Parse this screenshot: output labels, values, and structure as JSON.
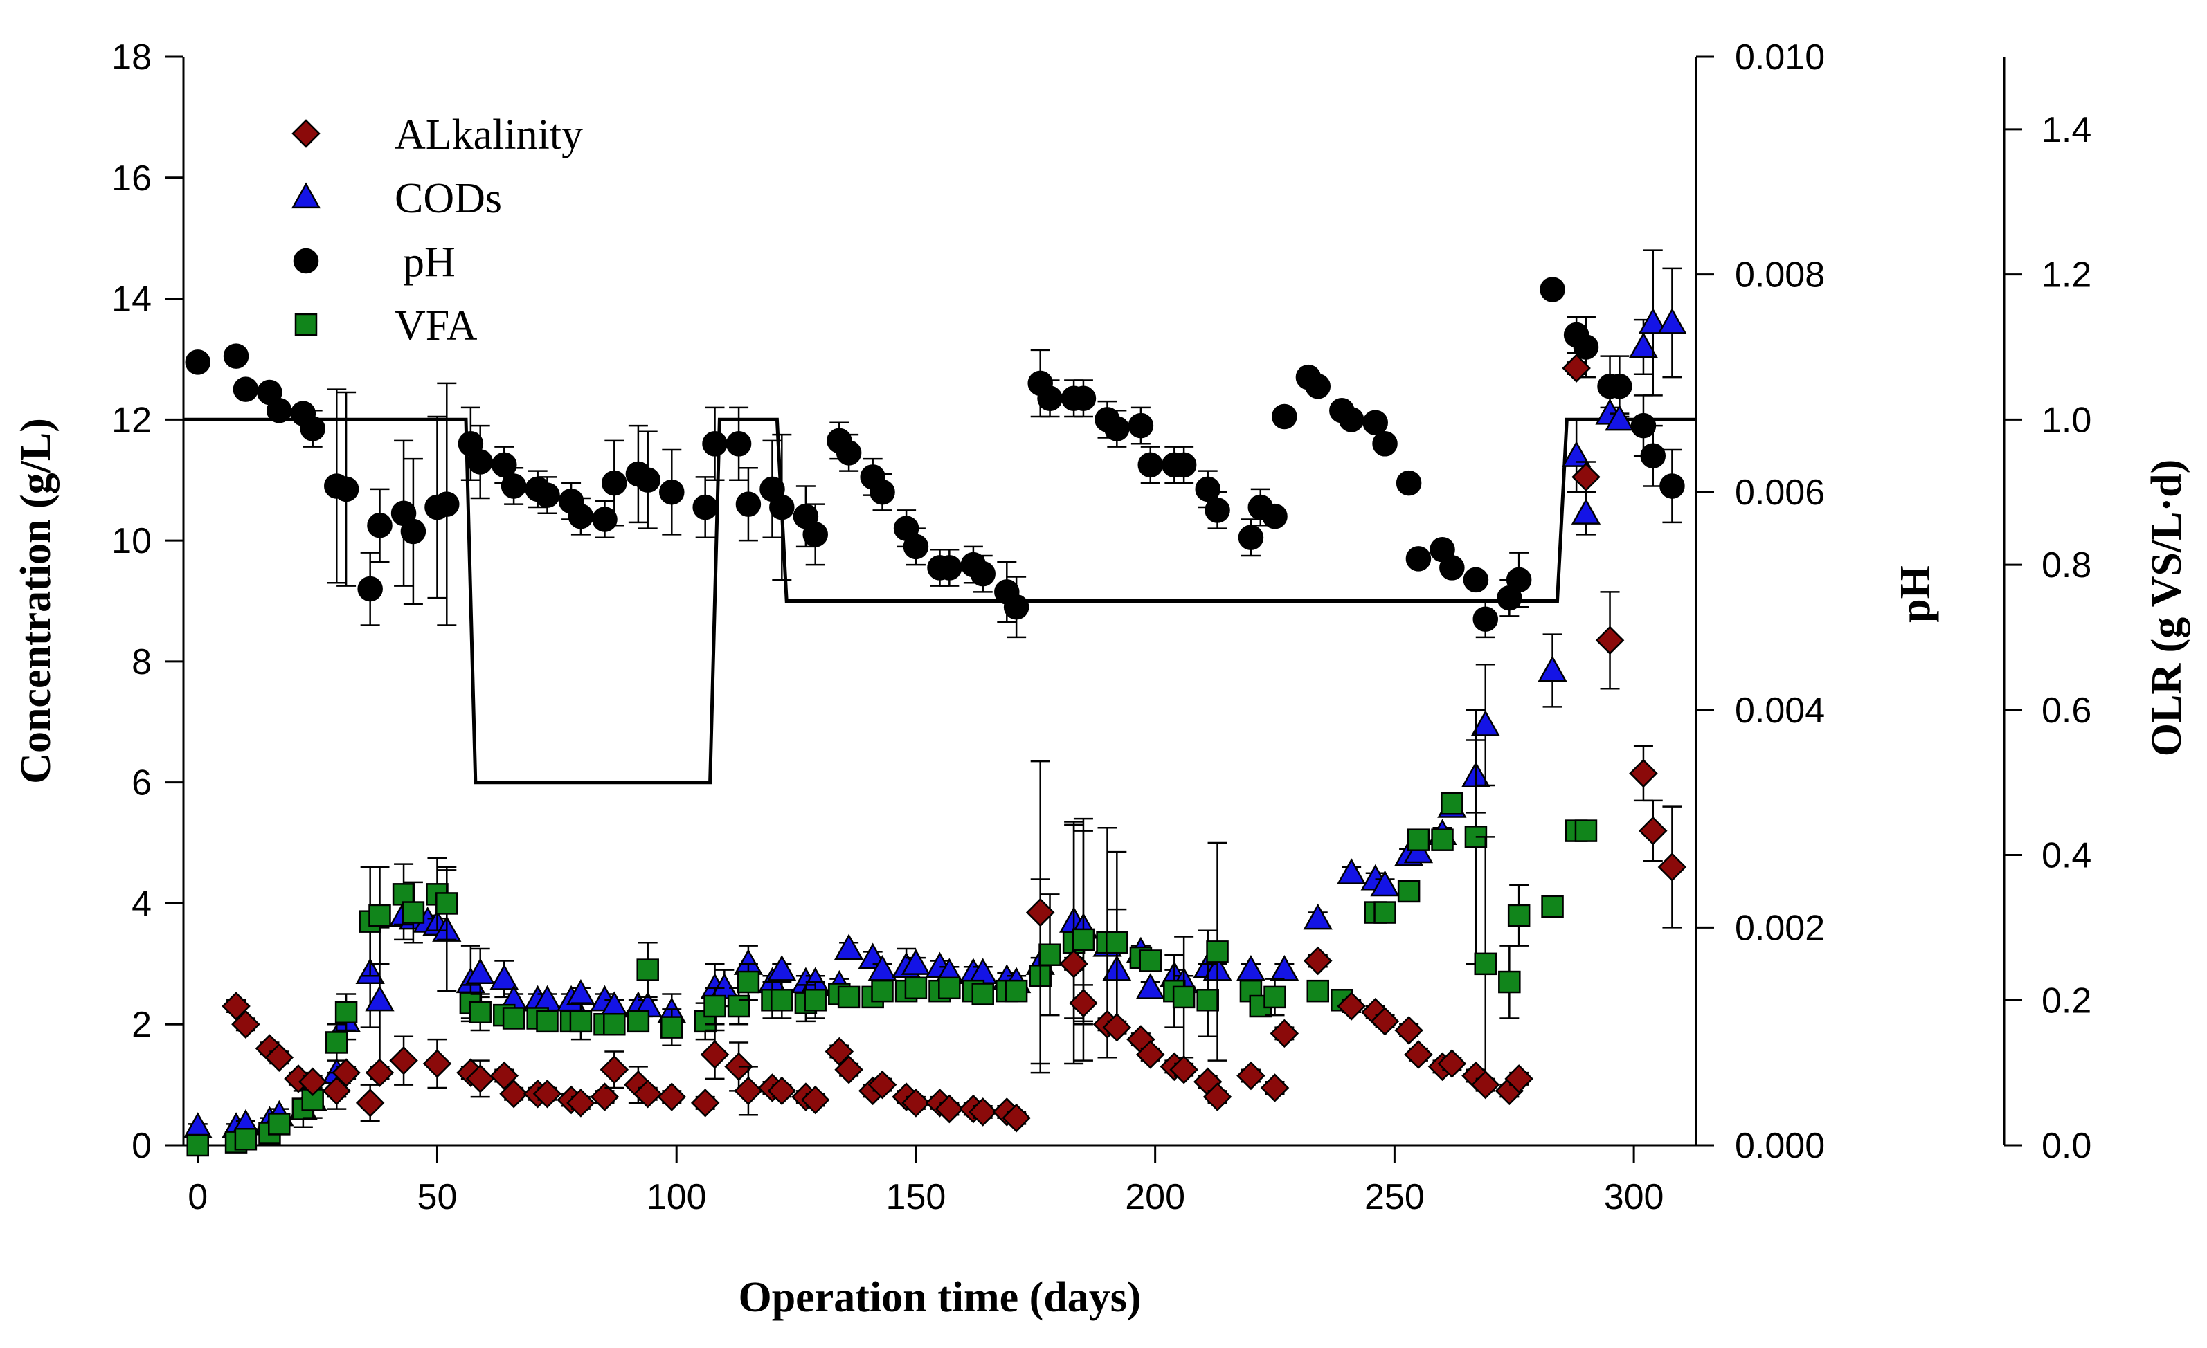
{
  "chart_data": {
    "type": "scatter",
    "title": "",
    "xlabel": "Operation time (days)",
    "ylabel": "Concentration (g/L)",
    "ylabel_right_1": "pH",
    "ylabel_right_2": "OLR (g VS/L·d)",
    "xlim": [
      -3,
      313
    ],
    "ylim": [
      0,
      18
    ],
    "ylim_right_1": [
      0.0,
      0.01
    ],
    "ylim_right_2": [
      0.0,
      1.5
    ],
    "xticks": [
      "0",
      "50",
      "100",
      "150",
      "200",
      "250",
      "300"
    ],
    "yticks": [
      "0",
      "2",
      "4",
      "6",
      "8",
      "10",
      "12",
      "14",
      "16",
      "18"
    ],
    "yticks_right_1": [
      "0.000",
      "0.002",
      "0.004",
      "0.006",
      "0.008",
      "0.010"
    ],
    "yticks_right_2": [
      "0.0",
      "0.2",
      "0.4",
      "0.6",
      "0.8",
      "1.0",
      "1.2",
      "1.4"
    ],
    "xtick_values": [
      0,
      50,
      100,
      150,
      200,
      250,
      300
    ],
    "ytick_values": [
      0,
      2,
      4,
      6,
      8,
      10,
      12,
      14,
      16,
      18
    ],
    "ytick_right_1_values": [
      0,
      0.002,
      0.004,
      0.006,
      0.008,
      0.01
    ],
    "ytick_right_2_values": [
      0,
      0.2,
      0.4,
      0.6,
      0.8,
      1.0,
      1.2,
      1.4
    ],
    "legend_position": "top-left",
    "colors": {
      "alkalinity": "#8b0a0a",
      "cods": "#1414e6",
      "ph": "#000000",
      "vfa": "#11851b",
      "olr": "#000000"
    },
    "series": [
      {
        "name": "ALkalinity",
        "marker": "diamond",
        "axis": "left",
        "x": [
          8,
          10,
          15,
          17,
          21,
          24,
          29,
          31,
          36,
          38,
          43,
          50,
          57,
          59,
          64,
          66,
          71,
          73,
          78,
          80,
          85,
          87,
          92,
          94,
          99,
          106,
          108,
          113,
          115,
          120,
          122,
          127,
          129,
          134,
          136,
          141,
          143,
          148,
          150,
          155,
          157,
          162,
          164,
          169,
          171,
          176,
          183,
          185,
          190,
          192,
          197,
          199,
          204,
          206,
          211,
          213,
          220,
          225,
          227,
          234,
          241,
          246,
          248,
          253,
          255,
          260,
          262,
          267,
          269,
          274,
          276,
          288,
          290,
          295,
          302,
          304,
          308
        ],
        "y": [
          2.3,
          2.0,
          1.6,
          1.45,
          1.1,
          1.05,
          0.9,
          1.2,
          0.7,
          1.2,
          1.4,
          1.35,
          1.2,
          1.1,
          1.15,
          0.85,
          0.85,
          0.85,
          0.75,
          0.7,
          0.8,
          1.25,
          1.0,
          0.85,
          0.8,
          0.7,
          1.5,
          1.3,
          0.9,
          0.95,
          0.9,
          0.8,
          0.75,
          1.55,
          1.25,
          0.9,
          1.0,
          0.8,
          0.7,
          0.7,
          0.6,
          0.6,
          0.55,
          0.55,
          0.45,
          3.85,
          3.0,
          2.35,
          2.0,
          1.95,
          1.75,
          1.5,
          1.3,
          1.25,
          1.05,
          0.8,
          1.15,
          0.95,
          1.85,
          3.05,
          2.3,
          2.2,
          2.05,
          1.9,
          1.5,
          1.3,
          1.35,
          1.15,
          1.0,
          0.9,
          1.1,
          12.85,
          11.05,
          8.35,
          6.15,
          5.2,
          4.6
        ],
        "yerr": [
          0.1,
          0.1,
          0.1,
          0.1,
          0.1,
          0.1,
          0.3,
          0.1,
          0.3,
          0.1,
          0.4,
          0.4,
          0.1,
          0.3,
          0.1,
          0.1,
          0.1,
          0.1,
          0.1,
          0.1,
          0.1,
          0.3,
          0.3,
          0.1,
          0.1,
          0.1,
          0.4,
          0.4,
          0.4,
          0.1,
          0.1,
          0.1,
          0.1,
          0.1,
          0.1,
          0.1,
          0.1,
          0.1,
          0.1,
          0.1,
          0.1,
          0.1,
          0.1,
          0.1,
          0.1,
          2.5,
          0.1,
          0.3,
          0.1,
          0.1,
          0.1,
          0.1,
          0.1,
          0.1,
          0.1,
          0.1,
          0.1,
          0.1,
          0.1,
          0.1,
          0.1,
          0.1,
          0.1,
          0.1,
          0.1,
          0.1,
          0.1,
          0.1,
          0.1,
          0.1,
          0.1,
          0.1,
          0.25,
          0.8,
          0.45,
          0.5,
          1.0
        ]
      },
      {
        "name": "CODs",
        "marker": "triangle",
        "axis": "left",
        "x": [
          0,
          8,
          10,
          15,
          17,
          22,
          24,
          29,
          31,
          36,
          38,
          43,
          45,
          48,
          50,
          52,
          57,
          59,
          64,
          66,
          71,
          73,
          78,
          80,
          85,
          87,
          92,
          94,
          99,
          108,
          110,
          115,
          120,
          122,
          127,
          129,
          134,
          136,
          141,
          143,
          148,
          150,
          155,
          157,
          162,
          164,
          169,
          171,
          176,
          183,
          185,
          190,
          192,
          197,
          199,
          204,
          206,
          211,
          213,
          220,
          227,
          234,
          241,
          246,
          248,
          253,
          255,
          260,
          262,
          267,
          269,
          283,
          288,
          290,
          295,
          297,
          302,
          304,
          308
        ],
        "y": [
          0.3,
          0.3,
          0.35,
          0.4,
          0.5,
          0.6,
          0.75,
          1.2,
          2.05,
          2.85,
          2.4,
          3.8,
          3.75,
          3.7,
          3.65,
          3.55,
          2.7,
          2.85,
          2.75,
          2.4,
          2.4,
          2.4,
          2.4,
          2.5,
          2.4,
          2.3,
          2.3,
          2.3,
          2.2,
          2.6,
          2.6,
          3.0,
          2.7,
          2.9,
          2.7,
          2.7,
          2.65,
          3.25,
          3.1,
          2.9,
          2.95,
          3.0,
          2.95,
          2.85,
          2.85,
          2.85,
          2.75,
          2.7,
          3.0,
          3.7,
          3.6,
          3.3,
          2.9,
          3.2,
          2.6,
          2.8,
          2.7,
          2.95,
          2.9,
          2.9,
          2.9,
          3.75,
          4.5,
          4.4,
          4.3,
          4.8,
          4.85,
          5.15,
          5.6,
          6.1,
          6.95,
          7.85,
          11.4,
          10.45,
          12.1,
          12.0,
          13.2,
          13.6,
          13.6
        ],
        "yerr": [
          0.05,
          0.05,
          0.05,
          0.05,
          0.1,
          0.3,
          0.1,
          0.4,
          0.3,
          0.9,
          1.2,
          0.4,
          0.1,
          0.1,
          0.1,
          1.0,
          0.6,
          0.4,
          0.3,
          0.1,
          0.1,
          0.1,
          0.1,
          0.1,
          0.1,
          0.1,
          0.1,
          0.1,
          0.3,
          0.4,
          0.3,
          0.3,
          0.1,
          0.1,
          0.1,
          0.1,
          0.1,
          0.1,
          0.1,
          0.1,
          0.3,
          0.1,
          0.1,
          0.1,
          0.1,
          0.1,
          0.1,
          0.1,
          0.1,
          1.6,
          1.6,
          0.1,
          1.0,
          0.1,
          0.1,
          0.1,
          0.1,
          0.6,
          0.1,
          0.1,
          0.1,
          0.1,
          0.1,
          0.1,
          0.1,
          0.1,
          0.1,
          0.1,
          0.1,
          0.6,
          1.0,
          0.6,
          0.6,
          0.35,
          0.1,
          0.1,
          0.45,
          1.2,
          0.9
        ]
      },
      {
        "name": "pH",
        "marker": "circle",
        "axis": "left",
        "x": [
          0,
          8,
          10,
          15,
          17,
          22,
          24,
          29,
          31,
          36,
          38,
          43,
          45,
          50,
          52,
          57,
          59,
          64,
          66,
          71,
          73,
          78,
          80,
          85,
          87,
          92,
          94,
          99,
          106,
          108,
          113,
          115,
          120,
          122,
          127,
          129,
          134,
          136,
          141,
          143,
          148,
          150,
          155,
          157,
          162,
          164,
          169,
          171,
          176,
          178,
          183,
          185,
          190,
          192,
          197,
          199,
          204,
          206,
          211,
          213,
          220,
          222,
          225,
          227,
          232,
          234,
          239,
          241,
          246,
          248,
          253,
          255,
          260,
          262,
          267,
          269,
          274,
          276,
          283,
          288,
          290,
          295,
          297,
          302,
          304,
          308
        ],
        "y": [
          12.95,
          13.05,
          12.5,
          12.45,
          12.15,
          12.1,
          11.85,
          10.9,
          10.85,
          9.2,
          10.25,
          10.45,
          10.15,
          10.55,
          10.6,
          11.6,
          11.3,
          11.25,
          10.9,
          10.85,
          10.75,
          10.65,
          10.4,
          10.35,
          10.95,
          11.1,
          11.0,
          10.8,
          10.55,
          11.6,
          11.6,
          10.6,
          10.85,
          10.55,
          10.4,
          10.1,
          11.65,
          11.45,
          11.05,
          10.8,
          10.2,
          9.9,
          9.55,
          9.55,
          9.6,
          9.45,
          9.15,
          8.9,
          12.6,
          12.35,
          12.35,
          12.35,
          12.0,
          11.85,
          11.9,
          11.25,
          11.25,
          11.25,
          10.85,
          10.5,
          10.05,
          10.55,
          10.4,
          12.05,
          12.7,
          12.55,
          12.15,
          12.0,
          11.95,
          11.6,
          10.95,
          9.7,
          9.85,
          9.55,
          9.35,
          8.7,
          9.05,
          9.35,
          14.15,
          13.4,
          13.2,
          12.55,
          12.55,
          11.9,
          11.4,
          10.9
        ],
        "yerr": [
          0.1,
          0.1,
          0.1,
          0.1,
          0.1,
          0.1,
          0.3,
          1.6,
          1.6,
          0.6,
          0.6,
          1.2,
          1.2,
          1.5,
          2.0,
          0.6,
          0.6,
          0.3,
          0.3,
          0.3,
          0.3,
          0.3,
          0.3,
          0.3,
          0.7,
          0.8,
          0.8,
          0.7,
          0.5,
          0.6,
          0.6,
          0.6,
          0.8,
          1.2,
          0.5,
          0.5,
          0.3,
          0.3,
          0.3,
          0.3,
          0.3,
          0.3,
          0.3,
          0.3,
          0.3,
          0.3,
          0.5,
          0.5,
          0.55,
          0.3,
          0.3,
          0.3,
          0.3,
          0.3,
          0.3,
          0.3,
          0.3,
          0.3,
          0.3,
          0.3,
          0.3,
          0.3,
          0.1,
          0.1,
          0.1,
          0.1,
          0.1,
          0.1,
          0.1,
          0.1,
          0.1,
          0.1,
          0.1,
          0.1,
          0.1,
          0.3,
          0.3,
          0.45,
          0.1,
          0.3,
          0.5,
          0.5,
          0.5,
          0.5,
          0.5,
          0.6
        ]
      },
      {
        "name": "VFA",
        "marker": "square",
        "axis": "left",
        "x": [
          0,
          8,
          10,
          15,
          17,
          22,
          24,
          29,
          31,
          36,
          38,
          43,
          45,
          50,
          52,
          57,
          59,
          64,
          66,
          71,
          73,
          78,
          80,
          85,
          87,
          92,
          94,
          99,
          106,
          108,
          113,
          115,
          120,
          122,
          127,
          129,
          134,
          136,
          141,
          143,
          148,
          150,
          155,
          157,
          162,
          164,
          169,
          171,
          176,
          178,
          183,
          185,
          190,
          192,
          197,
          199,
          204,
          206,
          211,
          213,
          220,
          222,
          225,
          234,
          239,
          246,
          248,
          253,
          255,
          260,
          262,
          267,
          269,
          274,
          276,
          283,
          288,
          290
        ],
        "y": [
          0.0,
          0.05,
          0.1,
          0.2,
          0.35,
          0.6,
          0.75,
          1.7,
          2.2,
          3.7,
          3.8,
          4.15,
          3.85,
          4.15,
          4.0,
          2.35,
          2.2,
          2.15,
          2.1,
          2.1,
          2.05,
          2.05,
          2.05,
          2.0,
          2.0,
          2.05,
          2.9,
          1.95,
          2.05,
          2.3,
          2.3,
          2.7,
          2.4,
          2.4,
          2.35,
          2.4,
          2.5,
          2.45,
          2.45,
          2.55,
          2.55,
          2.6,
          2.55,
          2.6,
          2.55,
          2.5,
          2.55,
          2.55,
          2.8,
          3.15,
          3.35,
          3.4,
          3.35,
          3.35,
          3.1,
          3.05,
          2.55,
          2.45,
          2.4,
          3.2,
          2.55,
          2.3,
          2.45,
          2.55,
          2.4,
          3.85,
          3.85,
          4.2,
          5.05,
          5.05,
          5.65,
          5.1,
          3.0,
          2.7,
          3.8,
          3.95,
          5.2,
          5.2
        ],
        "yerr": [
          0.05,
          0.05,
          0.05,
          0.1,
          0.1,
          0.1,
          0.3,
          0.3,
          0.3,
          0.9,
          0.8,
          0.5,
          0.5,
          0.6,
          0.6,
          0.3,
          0.3,
          0.1,
          0.1,
          0.1,
          0.1,
          0.1,
          0.3,
          0.1,
          0.1,
          0.1,
          0.45,
          0.3,
          0.3,
          0.3,
          0.3,
          0.3,
          0.3,
          0.3,
          0.3,
          0.3,
          0.1,
          0.1,
          0.1,
          0.1,
          0.1,
          0.1,
          0.1,
          0.1,
          0.1,
          0.1,
          0.1,
          0.1,
          1.6,
          1.0,
          2.0,
          2.0,
          1.9,
          1.5,
          0.1,
          0.1,
          0.6,
          1.0,
          0.6,
          1.8,
          0.1,
          0.1,
          0.3,
          0.1,
          0.1,
          0.1,
          0.1,
          0.1,
          0.1,
          0.1,
          0.1,
          2.1,
          2.1,
          0.6,
          0.5,
          0.1,
          0.1,
          0.1
        ]
      },
      {
        "name": "OLR",
        "type": "line",
        "axis": "right_2",
        "x": [
          -3,
          56,
          58,
          107,
          109,
          121,
          123,
          284,
          286,
          313
        ],
        "y": [
          1.0,
          1.0,
          0.5,
          0.5,
          1.0,
          1.0,
          0.75,
          0.75,
          1.0,
          1.0
        ]
      }
    ]
  }
}
